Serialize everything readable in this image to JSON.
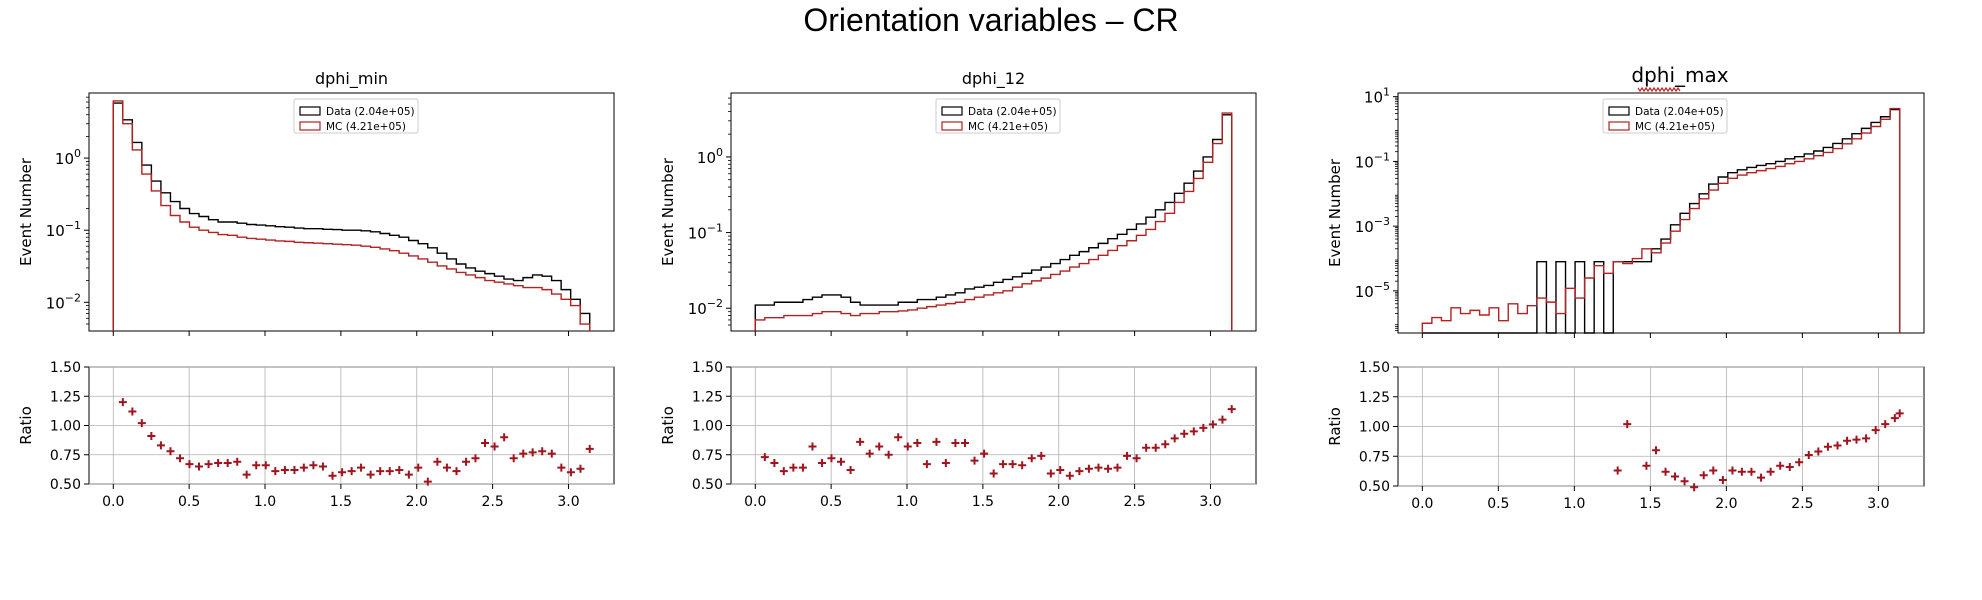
{
  "page_title": "Orientation variables – CR",
  "colors": {
    "data": "#000000",
    "mc": "#b22222",
    "ratio": "#a0141e",
    "grid": "#b0b0b0"
  },
  "chart_data": [
    {
      "type": "histogram",
      "title": "dphi_min",
      "xlabel": "",
      "ylabel": "Event Number",
      "yscale": "log",
      "ylim": [
        0.004,
        8
      ],
      "yticks": [
        {
          "v": 0.01,
          "label": "10^-2"
        },
        {
          "v": 0.1,
          "label": "10^-1"
        },
        {
          "v": 1,
          "label": "10^0"
        }
      ],
      "xlim": [
        -0.16,
        3.3
      ],
      "bin_edges_start": 0,
      "bin_width": 0.0628,
      "nbins": 50,
      "legend": {
        "position": "upper-center",
        "entries": [
          "Data (2.04e+05)",
          "MC (4.21e+05)"
        ]
      },
      "series": [
        {
          "name": "Data (2.04e+05)",
          "color": "#000000",
          "values": [
            5.8,
            3.4,
            1.65,
            0.8,
            0.48,
            0.33,
            0.25,
            0.2,
            0.17,
            0.155,
            0.14,
            0.13,
            0.13,
            0.125,
            0.12,
            0.118,
            0.115,
            0.112,
            0.11,
            0.107,
            0.105,
            0.105,
            0.103,
            0.102,
            0.1,
            0.1,
            0.098,
            0.095,
            0.09,
            0.085,
            0.08,
            0.072,
            0.065,
            0.057,
            0.048,
            0.04,
            0.034,
            0.03,
            0.027,
            0.025,
            0.023,
            0.021,
            0.02,
            0.022,
            0.024,
            0.023,
            0.02,
            0.015,
            0.011,
            0.007
          ]
        },
        {
          "name": "MC (4.21e+05)",
          "color": "#b22222",
          "values": [
            6.2,
            3.0,
            1.3,
            0.6,
            0.35,
            0.22,
            0.16,
            0.13,
            0.11,
            0.1,
            0.093,
            0.087,
            0.085,
            0.08,
            0.077,
            0.075,
            0.073,
            0.071,
            0.07,
            0.068,
            0.067,
            0.066,
            0.065,
            0.064,
            0.063,
            0.062,
            0.06,
            0.058,
            0.055,
            0.052,
            0.048,
            0.044,
            0.04,
            0.036,
            0.032,
            0.029,
            0.026,
            0.024,
            0.022,
            0.02,
            0.019,
            0.018,
            0.017,
            0.016,
            0.016,
            0.015,
            0.013,
            0.011,
            0.009,
            0.005
          ]
        }
      ],
      "ratio": {
        "ylabel": "Ratio",
        "ylim": [
          0.5,
          1.5
        ],
        "yticks": [
          "0.50",
          "0.75",
          "1.00",
          "1.25",
          "1.50"
        ],
        "xticks": [
          "0.0",
          "0.5",
          "1.0",
          "1.5",
          "2.0",
          "2.5",
          "3.0"
        ],
        "points": [
          [
            0.063,
            1.2
          ],
          [
            0.126,
            1.12
          ],
          [
            0.188,
            1.02
          ],
          [
            0.251,
            0.91
          ],
          [
            0.314,
            0.83
          ],
          [
            0.377,
            0.78
          ],
          [
            0.44,
            0.72
          ],
          [
            0.502,
            0.67
          ],
          [
            0.565,
            0.65
          ],
          [
            0.628,
            0.67
          ],
          [
            0.691,
            0.68
          ],
          [
            0.754,
            0.68
          ],
          [
            0.817,
            0.69
          ],
          [
            0.879,
            0.58
          ],
          [
            0.942,
            0.66
          ],
          [
            1.005,
            0.66
          ],
          [
            1.068,
            0.61
          ],
          [
            1.131,
            0.62
          ],
          [
            1.194,
            0.62
          ],
          [
            1.256,
            0.64
          ],
          [
            1.319,
            0.66
          ],
          [
            1.382,
            0.65
          ],
          [
            1.445,
            0.57
          ],
          [
            1.508,
            0.6
          ],
          [
            1.571,
            0.61
          ],
          [
            1.633,
            0.64
          ],
          [
            1.696,
            0.58
          ],
          [
            1.759,
            0.61
          ],
          [
            1.822,
            0.61
          ],
          [
            1.885,
            0.62
          ],
          [
            1.948,
            0.58
          ],
          [
            2.01,
            0.64
          ],
          [
            2.073,
            0.52
          ],
          [
            2.136,
            0.69
          ],
          [
            2.199,
            0.64
          ],
          [
            2.262,
            0.61
          ],
          [
            2.325,
            0.69
          ],
          [
            2.387,
            0.72
          ],
          [
            2.45,
            0.85
          ],
          [
            2.513,
            0.82
          ],
          [
            2.576,
            0.9
          ],
          [
            2.639,
            0.72
          ],
          [
            2.702,
            0.76
          ],
          [
            2.764,
            0.77
          ],
          [
            2.827,
            0.78
          ],
          [
            2.89,
            0.76
          ],
          [
            2.953,
            0.64
          ],
          [
            3.016,
            0.6
          ],
          [
            3.079,
            0.63
          ],
          [
            3.14,
            0.8
          ]
        ]
      }
    },
    {
      "type": "histogram",
      "title": "dphi_12",
      "xlabel": "",
      "ylabel": "Event Number",
      "yscale": "log",
      "ylim": [
        0.005,
        7
      ],
      "yticks": [
        {
          "v": 0.01,
          "label": "10^-2"
        },
        {
          "v": 0.1,
          "label": "10^-1"
        },
        {
          "v": 1,
          "label": "10^0"
        }
      ],
      "xlim": [
        -0.16,
        3.3
      ],
      "bin_edges_start": 0,
      "bin_width": 0.0628,
      "nbins": 50,
      "legend": {
        "position": "upper-center",
        "entries": [
          "Data (2.04e+05)",
          "MC (4.21e+05)"
        ]
      },
      "series": [
        {
          "name": "Data (2.04e+05)",
          "color": "#000000",
          "values": [
            0.011,
            0.011,
            0.012,
            0.012,
            0.012,
            0.013,
            0.014,
            0.015,
            0.015,
            0.014,
            0.012,
            0.011,
            0.011,
            0.011,
            0.011,
            0.012,
            0.012,
            0.013,
            0.013,
            0.014,
            0.015,
            0.016,
            0.018,
            0.019,
            0.02,
            0.022,
            0.024,
            0.026,
            0.029,
            0.032,
            0.035,
            0.039,
            0.044,
            0.05,
            0.056,
            0.063,
            0.072,
            0.083,
            0.095,
            0.11,
            0.13,
            0.16,
            0.2,
            0.25,
            0.33,
            0.45,
            0.65,
            1.0,
            1.7,
            3.6
          ]
        },
        {
          "name": "MC (4.21e+05)",
          "color": "#b22222",
          "values": [
            0.007,
            0.0075,
            0.0075,
            0.008,
            0.008,
            0.008,
            0.0085,
            0.009,
            0.009,
            0.0085,
            0.008,
            0.0085,
            0.0085,
            0.009,
            0.009,
            0.0092,
            0.0095,
            0.01,
            0.0105,
            0.011,
            0.0115,
            0.012,
            0.013,
            0.014,
            0.015,
            0.016,
            0.017,
            0.019,
            0.021,
            0.023,
            0.025,
            0.028,
            0.031,
            0.035,
            0.039,
            0.044,
            0.05,
            0.058,
            0.067,
            0.078,
            0.092,
            0.11,
            0.14,
            0.18,
            0.25,
            0.35,
            0.52,
            0.85,
            1.5,
            3.8
          ]
        }
      ],
      "ratio": {
        "ylabel": "Ratio",
        "ylim": [
          0.5,
          1.5
        ],
        "yticks": [
          "0.50",
          "0.75",
          "1.00",
          "1.25",
          "1.50"
        ],
        "xticks": [
          "0.0",
          "0.5",
          "1.0",
          "1.5",
          "2.0",
          "2.5",
          "3.0"
        ],
        "points": [
          [
            0.063,
            0.73
          ],
          [
            0.126,
            0.68
          ],
          [
            0.188,
            0.61
          ],
          [
            0.251,
            0.64
          ],
          [
            0.314,
            0.64
          ],
          [
            0.377,
            0.82
          ],
          [
            0.44,
            0.68
          ],
          [
            0.502,
            0.72
          ],
          [
            0.565,
            0.69
          ],
          [
            0.628,
            0.62
          ],
          [
            0.691,
            0.86
          ],
          [
            0.754,
            0.76
          ],
          [
            0.817,
            0.82
          ],
          [
            0.879,
            0.75
          ],
          [
            0.942,
            0.9
          ],
          [
            1.005,
            0.82
          ],
          [
            1.068,
            0.85
          ],
          [
            1.131,
            0.67
          ],
          [
            1.194,
            0.86
          ],
          [
            1.256,
            0.68
          ],
          [
            1.319,
            0.85
          ],
          [
            1.382,
            0.85
          ],
          [
            1.445,
            0.7
          ],
          [
            1.508,
            0.76
          ],
          [
            1.571,
            0.59
          ],
          [
            1.633,
            0.67
          ],
          [
            1.696,
            0.67
          ],
          [
            1.759,
            0.66
          ],
          [
            1.822,
            0.72
          ],
          [
            1.885,
            0.74
          ],
          [
            1.948,
            0.59
          ],
          [
            2.01,
            0.62
          ],
          [
            2.073,
            0.57
          ],
          [
            2.136,
            0.61
          ],
          [
            2.199,
            0.63
          ],
          [
            2.262,
            0.64
          ],
          [
            2.325,
            0.63
          ],
          [
            2.387,
            0.64
          ],
          [
            2.45,
            0.74
          ],
          [
            2.513,
            0.72
          ],
          [
            2.576,
            0.81
          ],
          [
            2.639,
            0.81
          ],
          [
            2.702,
            0.84
          ],
          [
            2.764,
            0.89
          ],
          [
            2.827,
            0.93
          ],
          [
            2.89,
            0.95
          ],
          [
            2.953,
            0.98
          ],
          [
            3.016,
            1.01
          ],
          [
            3.079,
            1.05
          ],
          [
            3.14,
            1.14
          ]
        ]
      }
    },
    {
      "type": "histogram",
      "title": "dphi_max",
      "xlabel": "",
      "ylabel": "Event Number",
      "yscale": "log",
      "ylim": [
        5e-07,
        13
      ],
      "yticks": [
        {
          "v": 1e-05,
          "label": "10^-5"
        },
        {
          "v": 0.001,
          "label": "10^-3"
        },
        {
          "v": 0.1,
          "label": "10^-1"
        },
        {
          "v": 10,
          "label": "10^1"
        }
      ],
      "xlim": [
        -0.16,
        3.3
      ],
      "bin_edges_start": 0,
      "bin_width": 0.0628,
      "nbins": 50,
      "legend": {
        "position": "upper-center",
        "entries": [
          "Data (2.04e+05)",
          "MC (4.21e+05)"
        ]
      },
      "series": [
        {
          "name": "Data (2.04e+05)",
          "color": "#000000",
          "values": [
            0,
            0,
            0,
            0,
            0,
            0,
            0,
            0,
            0,
            0,
            0,
            0,
            8e-05,
            0,
            8e-05,
            0,
            8e-05,
            0,
            8e-05,
            0,
            8e-05,
            8e-05,
            8e-05,
            8e-05,
            0.0002,
            0.0004,
            0.0011,
            0.0025,
            0.005,
            0.01,
            0.02,
            0.033,
            0.045,
            0.055,
            0.065,
            0.075,
            0.085,
            0.1,
            0.12,
            0.14,
            0.17,
            0.21,
            0.27,
            0.36,
            0.5,
            0.72,
            1.05,
            1.6,
            2.4,
            4.0
          ]
        },
        {
          "name": "MC (4.21e+05)",
          "color": "#b22222",
          "values": [
            1e-06,
            1.5e-06,
            1.2e-06,
            3e-06,
            2e-06,
            2.5e-06,
            1.8e-06,
            3e-06,
            1.2e-06,
            4e-06,
            2e-06,
            3.5e-06,
            6e-06,
            4.5e-06,
            2e-06,
            1.2e-05,
            6e-06,
            2.5e-05,
            6e-05,
            3.5e-05,
            8e-05,
            7e-05,
            0.0001,
            0.0002,
            0.00015,
            0.0003,
            0.0007,
            0.0016,
            0.0035,
            0.007,
            0.013,
            0.021,
            0.03,
            0.038,
            0.045,
            0.052,
            0.06,
            0.07,
            0.085,
            0.1,
            0.12,
            0.15,
            0.19,
            0.25,
            0.35,
            0.5,
            0.75,
            1.2,
            2.0,
            4.3
          ]
        }
      ],
      "ratio": {
        "ylabel": "Ratio",
        "ylim": [
          0.5,
          1.5
        ],
        "yticks": [
          "0.50",
          "0.75",
          "1.00",
          "1.25",
          "1.50"
        ],
        "xticks": [
          "0.0",
          "0.5",
          "1.0",
          "1.5",
          "2.0",
          "2.5",
          "3.0"
        ],
        "points": [
          [
            1.285,
            0.63
          ],
          [
            1.348,
            1.02
          ],
          [
            1.474,
            0.67
          ],
          [
            1.537,
            0.8
          ],
          [
            1.6,
            0.62
          ],
          [
            1.662,
            0.58
          ],
          [
            1.725,
            0.54
          ],
          [
            1.788,
            0.49
          ],
          [
            1.851,
            0.59
          ],
          [
            1.914,
            0.63
          ],
          [
            1.977,
            0.55
          ],
          [
            2.04,
            0.63
          ],
          [
            2.102,
            0.62
          ],
          [
            2.165,
            0.62
          ],
          [
            2.228,
            0.57
          ],
          [
            2.291,
            0.62
          ],
          [
            2.354,
            0.67
          ],
          [
            2.417,
            0.66
          ],
          [
            2.479,
            0.7
          ],
          [
            2.542,
            0.76
          ],
          [
            2.605,
            0.79
          ],
          [
            2.668,
            0.83
          ],
          [
            2.731,
            0.84
          ],
          [
            2.794,
            0.88
          ],
          [
            2.856,
            0.89
          ],
          [
            2.919,
            0.9
          ],
          [
            2.982,
            0.97
          ],
          [
            3.045,
            1.02
          ],
          [
            3.108,
            1.07
          ],
          [
            3.14,
            1.11
          ]
        ]
      }
    }
  ]
}
